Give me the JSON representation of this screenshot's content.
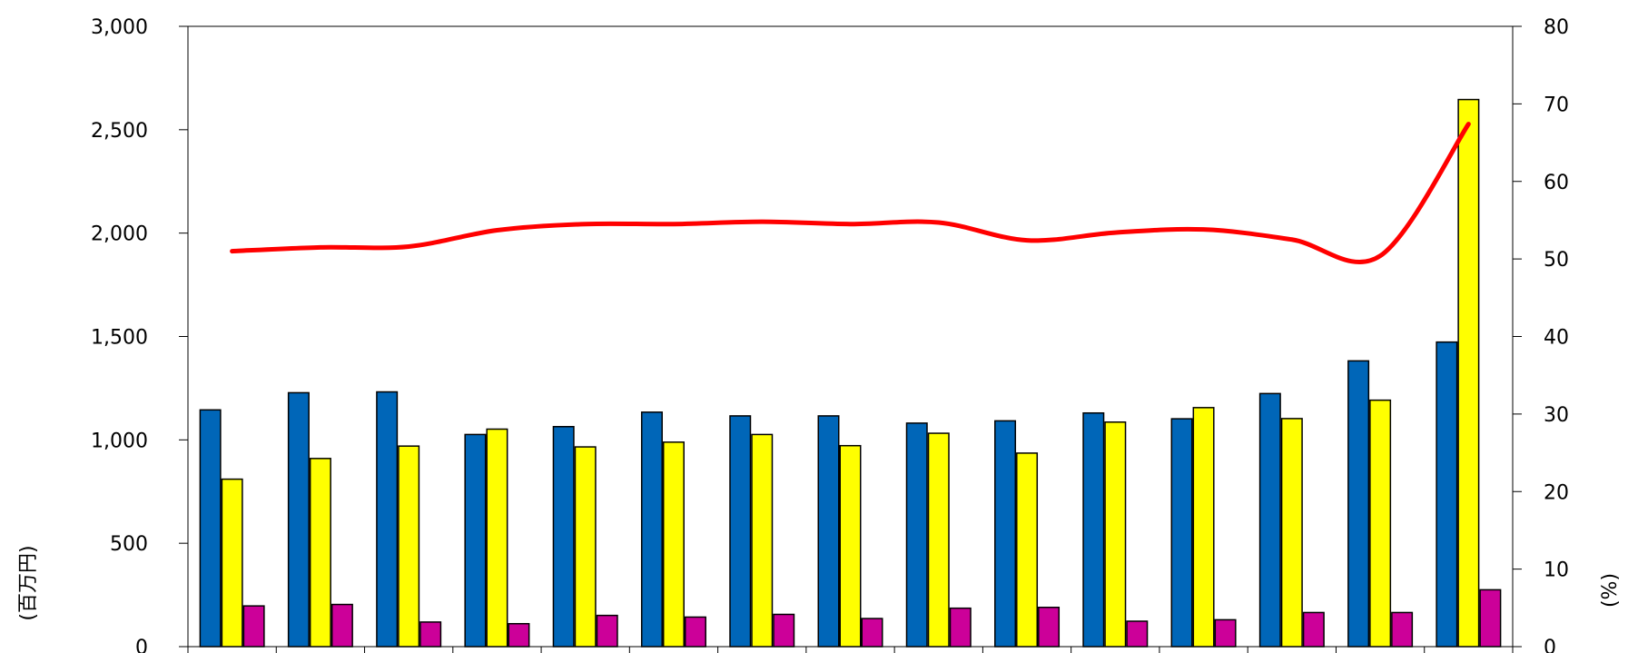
{
  "chart_data": {
    "type": "bar",
    "categories": [
      "",
      "",
      "",
      "",
      "",
      "",
      "",
      "",
      "",
      "",
      "",
      "",
      "",
      "",
      ""
    ],
    "series": [
      {
        "values": [
          1145,
          1228,
          1232,
          1026,
          1064,
          1134,
          1116,
          1116,
          1081,
          1092,
          1130,
          1102,
          1224,
          1382,
          1473
        ],
        "color": "#0066b8"
      },
      {
        "values": [
          810,
          910,
          970,
          1052,
          966,
          989,
          1026,
          972,
          1032,
          936,
          1086,
          1156,
          1103,
          1192,
          2646
        ],
        "color": "#ffff00"
      },
      {
        "values": [
          197,
          204,
          119,
          111,
          151,
          143,
          156,
          136,
          186,
          190,
          123,
          130,
          165,
          165,
          275
        ],
        "color": "#cc0099"
      }
    ],
    "line_series": [
      {
        "type": "line",
        "axis": "right",
        "values": [
          51.0,
          51.5,
          51.6,
          53.7,
          54.5,
          54.5,
          54.8,
          54.5,
          54.7,
          52.4,
          53.4,
          53.8,
          52.5,
          50.4,
          67.4
        ],
        "color": "#ff0000"
      }
    ],
    "left_axis": {
      "ylim": [
        0,
        3000
      ],
      "ticks": [
        "0",
        "500",
        "1,000",
        "1,500",
        "2,000",
        "2,500",
        "3,000"
      ],
      "ylabel": "(百万円)"
    },
    "right_axis": {
      "ylim": [
        0,
        80
      ],
      "ticks": [
        "0",
        "10",
        "20",
        "30",
        "40",
        "50",
        "60",
        "70",
        "80"
      ],
      "ylabel": "(%)"
    },
    "grid": false,
    "legend": "none"
  }
}
